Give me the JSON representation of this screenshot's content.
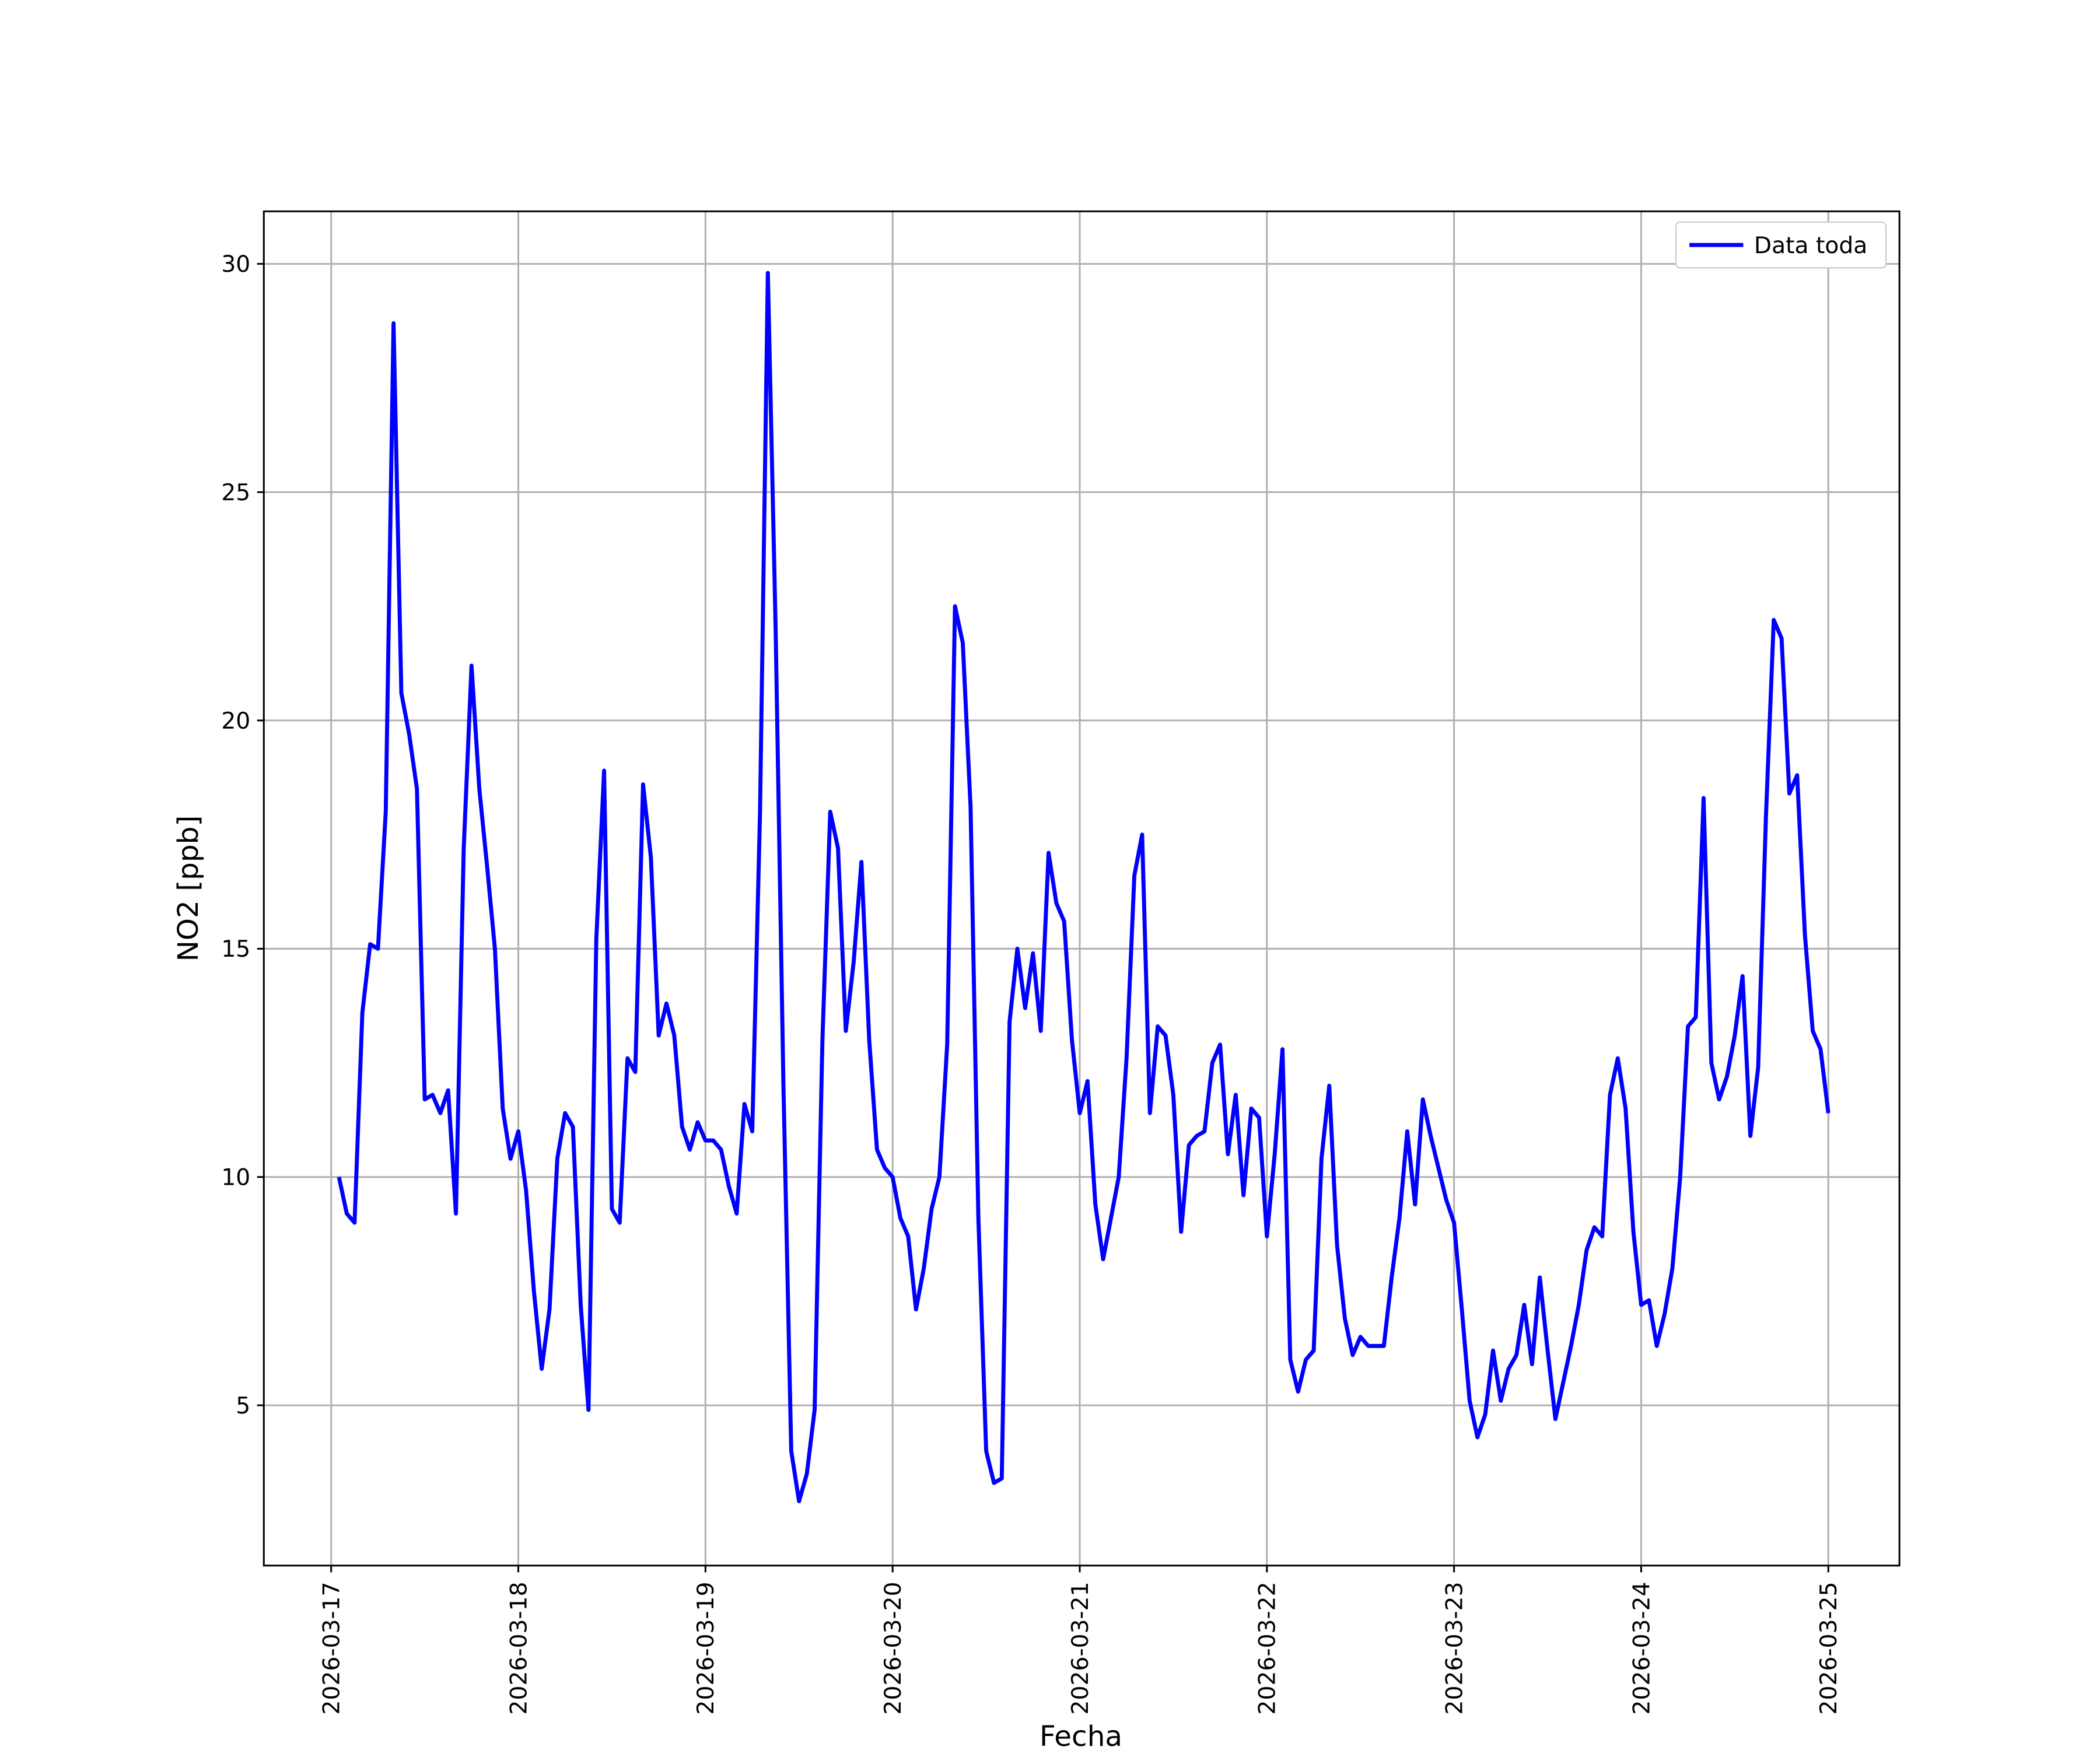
{
  "chart_data": {
    "type": "line",
    "x_label": "Fecha",
    "y_label": "NO2 [ppb]",
    "xlim": [
      "2026-03-16T15:22",
      "2026-03-25T09:07"
    ],
    "ylim": [
      1.49,
      31.15
    ],
    "yticks": [
      5,
      10,
      15,
      20,
      25,
      30
    ],
    "xticks": [
      "2026-03-17",
      "2026-03-18",
      "2026-03-19",
      "2026-03-20",
      "2026-03-21",
      "2026-03-22",
      "2026-03-23",
      "2026-03-24",
      "2026-03-25"
    ],
    "grid": true,
    "legend": "upper right",
    "x": [
      "2026-03-17T01:00",
      "2026-03-17T02:00",
      "2026-03-17T03:00",
      "2026-03-17T04:00",
      "2026-03-17T05:00",
      "2026-03-17T06:00",
      "2026-03-17T07:00",
      "2026-03-17T08:00",
      "2026-03-17T09:00",
      "2026-03-17T10:00",
      "2026-03-17T11:00",
      "2026-03-17T12:00",
      "2026-03-17T13:00",
      "2026-03-17T14:00",
      "2026-03-17T15:00",
      "2026-03-17T16:00",
      "2026-03-17T17:00",
      "2026-03-17T18:00",
      "2026-03-17T19:00",
      "2026-03-17T20:00",
      "2026-03-17T21:00",
      "2026-03-17T22:00",
      "2026-03-17T23:00",
      "2026-03-18T00:00",
      "2026-03-18T01:00",
      "2026-03-18T02:00",
      "2026-03-18T03:00",
      "2026-03-18T04:00",
      "2026-03-18T05:00",
      "2026-03-18T06:00",
      "2026-03-18T07:00",
      "2026-03-18T08:00",
      "2026-03-18T09:00",
      "2026-03-18T10:00",
      "2026-03-18T11:00",
      "2026-03-18T12:00",
      "2026-03-18T13:00",
      "2026-03-18T14:00",
      "2026-03-18T15:00",
      "2026-03-18T16:00",
      "2026-03-18T17:00",
      "2026-03-18T18:00",
      "2026-03-18T19:00",
      "2026-03-18T20:00",
      "2026-03-18T21:00",
      "2026-03-18T22:00",
      "2026-03-18T23:00",
      "2026-03-19T00:00",
      "2026-03-19T01:00",
      "2026-03-19T02:00",
      "2026-03-19T03:00",
      "2026-03-19T04:00",
      "2026-03-19T05:00",
      "2026-03-19T06:00",
      "2026-03-19T07:00",
      "2026-03-19T08:00",
      "2026-03-19T09:00",
      "2026-03-19T10:00",
      "2026-03-19T11:00",
      "2026-03-19T12:00",
      "2026-03-19T13:00",
      "2026-03-19T14:00",
      "2026-03-19T15:00",
      "2026-03-19T16:00",
      "2026-03-19T17:00",
      "2026-03-19T18:00",
      "2026-03-19T19:00",
      "2026-03-19T20:00",
      "2026-03-19T21:00",
      "2026-03-19T22:00",
      "2026-03-19T23:00",
      "2026-03-20T00:00",
      "2026-03-20T01:00",
      "2026-03-20T02:00",
      "2026-03-20T03:00",
      "2026-03-20T04:00",
      "2026-03-20T05:00",
      "2026-03-20T06:00",
      "2026-03-20T07:00",
      "2026-03-20T08:00",
      "2026-03-20T09:00",
      "2026-03-20T10:00",
      "2026-03-20T11:00",
      "2026-03-20T12:00",
      "2026-03-20T13:00",
      "2026-03-20T14:00",
      "2026-03-20T15:00",
      "2026-03-20T16:00",
      "2026-03-20T17:00",
      "2026-03-20T18:00",
      "2026-03-20T19:00",
      "2026-03-20T20:00",
      "2026-03-20T21:00",
      "2026-03-20T22:00",
      "2026-03-20T23:00",
      "2026-03-21T00:00",
      "2026-03-21T01:00",
      "2026-03-21T02:00",
      "2026-03-21T03:00",
      "2026-03-21T04:00",
      "2026-03-21T05:00",
      "2026-03-21T06:00",
      "2026-03-21T07:00",
      "2026-03-21T08:00",
      "2026-03-21T09:00",
      "2026-03-21T10:00",
      "2026-03-21T11:00",
      "2026-03-21T12:00",
      "2026-03-21T13:00",
      "2026-03-21T14:00",
      "2026-03-21T15:00",
      "2026-03-21T16:00",
      "2026-03-21T17:00",
      "2026-03-21T18:00",
      "2026-03-21T19:00",
      "2026-03-21T20:00",
      "2026-03-21T21:00",
      "2026-03-21T22:00",
      "2026-03-21T23:00",
      "2026-03-22T00:00",
      "2026-03-22T01:00",
      "2026-03-22T02:00",
      "2026-03-22T03:00",
      "2026-03-22T04:00",
      "2026-03-22T05:00",
      "2026-03-22T06:00",
      "2026-03-22T07:00",
      "2026-03-22T08:00",
      "2026-03-22T09:00",
      "2026-03-22T10:00",
      "2026-03-22T11:00",
      "2026-03-22T12:00",
      "2026-03-22T13:00",
      "2026-03-22T14:00",
      "2026-03-22T15:00",
      "2026-03-22T16:00",
      "2026-03-22T17:00",
      "2026-03-22T18:00",
      "2026-03-22T19:00",
      "2026-03-22T20:00",
      "2026-03-22T21:00",
      "2026-03-22T22:00",
      "2026-03-22T23:00",
      "2026-03-23T00:00",
      "2026-03-23T01:00",
      "2026-03-23T02:00",
      "2026-03-23T03:00",
      "2026-03-23T04:00",
      "2026-03-23T05:00",
      "2026-03-23T06:00",
      "2026-03-23T07:00",
      "2026-03-23T08:00",
      "2026-03-23T09:00",
      "2026-03-23T10:00",
      "2026-03-23T11:00",
      "2026-03-23T12:00",
      "2026-03-23T13:00",
      "2026-03-23T14:00",
      "2026-03-23T15:00",
      "2026-03-23T16:00",
      "2026-03-23T17:00",
      "2026-03-23T18:00",
      "2026-03-23T19:00",
      "2026-03-23T20:00",
      "2026-03-23T21:00",
      "2026-03-23T22:00",
      "2026-03-23T23:00",
      "2026-03-24T00:00",
      "2026-03-24T01:00",
      "2026-03-24T02:00",
      "2026-03-24T03:00",
      "2026-03-24T04:00",
      "2026-03-24T05:00",
      "2026-03-24T06:00",
      "2026-03-24T07:00",
      "2026-03-24T08:00",
      "2026-03-24T09:00",
      "2026-03-24T10:00",
      "2026-03-24T11:00",
      "2026-03-24T12:00",
      "2026-03-24T13:00",
      "2026-03-24T14:00",
      "2026-03-24T15:00",
      "2026-03-24T16:00",
      "2026-03-24T17:00",
      "2026-03-24T18:00",
      "2026-03-24T19:00",
      "2026-03-24T20:00",
      "2026-03-24T21:00",
      "2026-03-24T22:00",
      "2026-03-24T23:00",
      "2026-03-25T00:00"
    ],
    "series": [
      {
        "name": "Data toda",
        "color": "#0000ff",
        "values": [
          10.0,
          9.2,
          9.0,
          13.6,
          15.1,
          15.0,
          18.0,
          28.7,
          20.6,
          19.7,
          18.5,
          11.7,
          11.8,
          11.4,
          11.9,
          9.2,
          17.2,
          21.2,
          18.5,
          16.8,
          15.0,
          11.5,
          10.4,
          11.0,
          9.7,
          7.5,
          5.8,
          7.1,
          10.4,
          11.4,
          11.1,
          7.2,
          4.9,
          15.2,
          18.9,
          9.3,
          9.0,
          12.6,
          12.3,
          18.6,
          17.0,
          13.1,
          13.8,
          13.1,
          11.1,
          10.6,
          11.2,
          10.8,
          10.8,
          10.6,
          9.8,
          9.2,
          11.6,
          11.0,
          18.0,
          29.8,
          22.0,
          12.0,
          4.0,
          2.9,
          3.5,
          4.9,
          13.0,
          18.0,
          17.2,
          13.2,
          14.7,
          16.9,
          13.0,
          10.6,
          10.2,
          10.0,
          9.1,
          8.7,
          7.1,
          8.0,
          9.3,
          10.0,
          12.9,
          22.5,
          21.7,
          18.1,
          9.1,
          4.0,
          3.3,
          3.4,
          13.4,
          15.0,
          13.7,
          14.9,
          13.2,
          17.1,
          16.0,
          15.6,
          13.0,
          11.4,
          12.1,
          9.4,
          8.2,
          9.1,
          10.0,
          12.6,
          16.6,
          17.5,
          11.4,
          13.3,
          13.1,
          11.8,
          8.8,
          10.7,
          10.9,
          11.0,
          12.5,
          12.9,
          10.5,
          11.8,
          9.6,
          11.5,
          11.3,
          8.7,
          10.5,
          12.8,
          6.0,
          5.3,
          6.0,
          6.2,
          10.4,
          12.0,
          8.5,
          6.9,
          6.1,
          6.5,
          6.3,
          6.3,
          6.3,
          7.8,
          9.1,
          11.0,
          9.4,
          11.7,
          10.9,
          10.2,
          9.5,
          9.0,
          7.1,
          5.1,
          4.3,
          4.8,
          6.2,
          5.1,
          5.8,
          6.1,
          7.2,
          5.9,
          7.8,
          6.2,
          4.7,
          5.5,
          6.3,
          7.2,
          8.4,
          8.9,
          8.7,
          11.8,
          12.6,
          11.5,
          8.8,
          7.2,
          7.3,
          6.3,
          7.0,
          8.0,
          10.0,
          13.3,
          13.5,
          18.3,
          12.5,
          11.7,
          12.2,
          13.1,
          14.4,
          10.9,
          12.4,
          17.9,
          22.2,
          21.8,
          18.4,
          18.8,
          15.3,
          13.2,
          12.8,
          11.4
        ]
      }
    ]
  }
}
